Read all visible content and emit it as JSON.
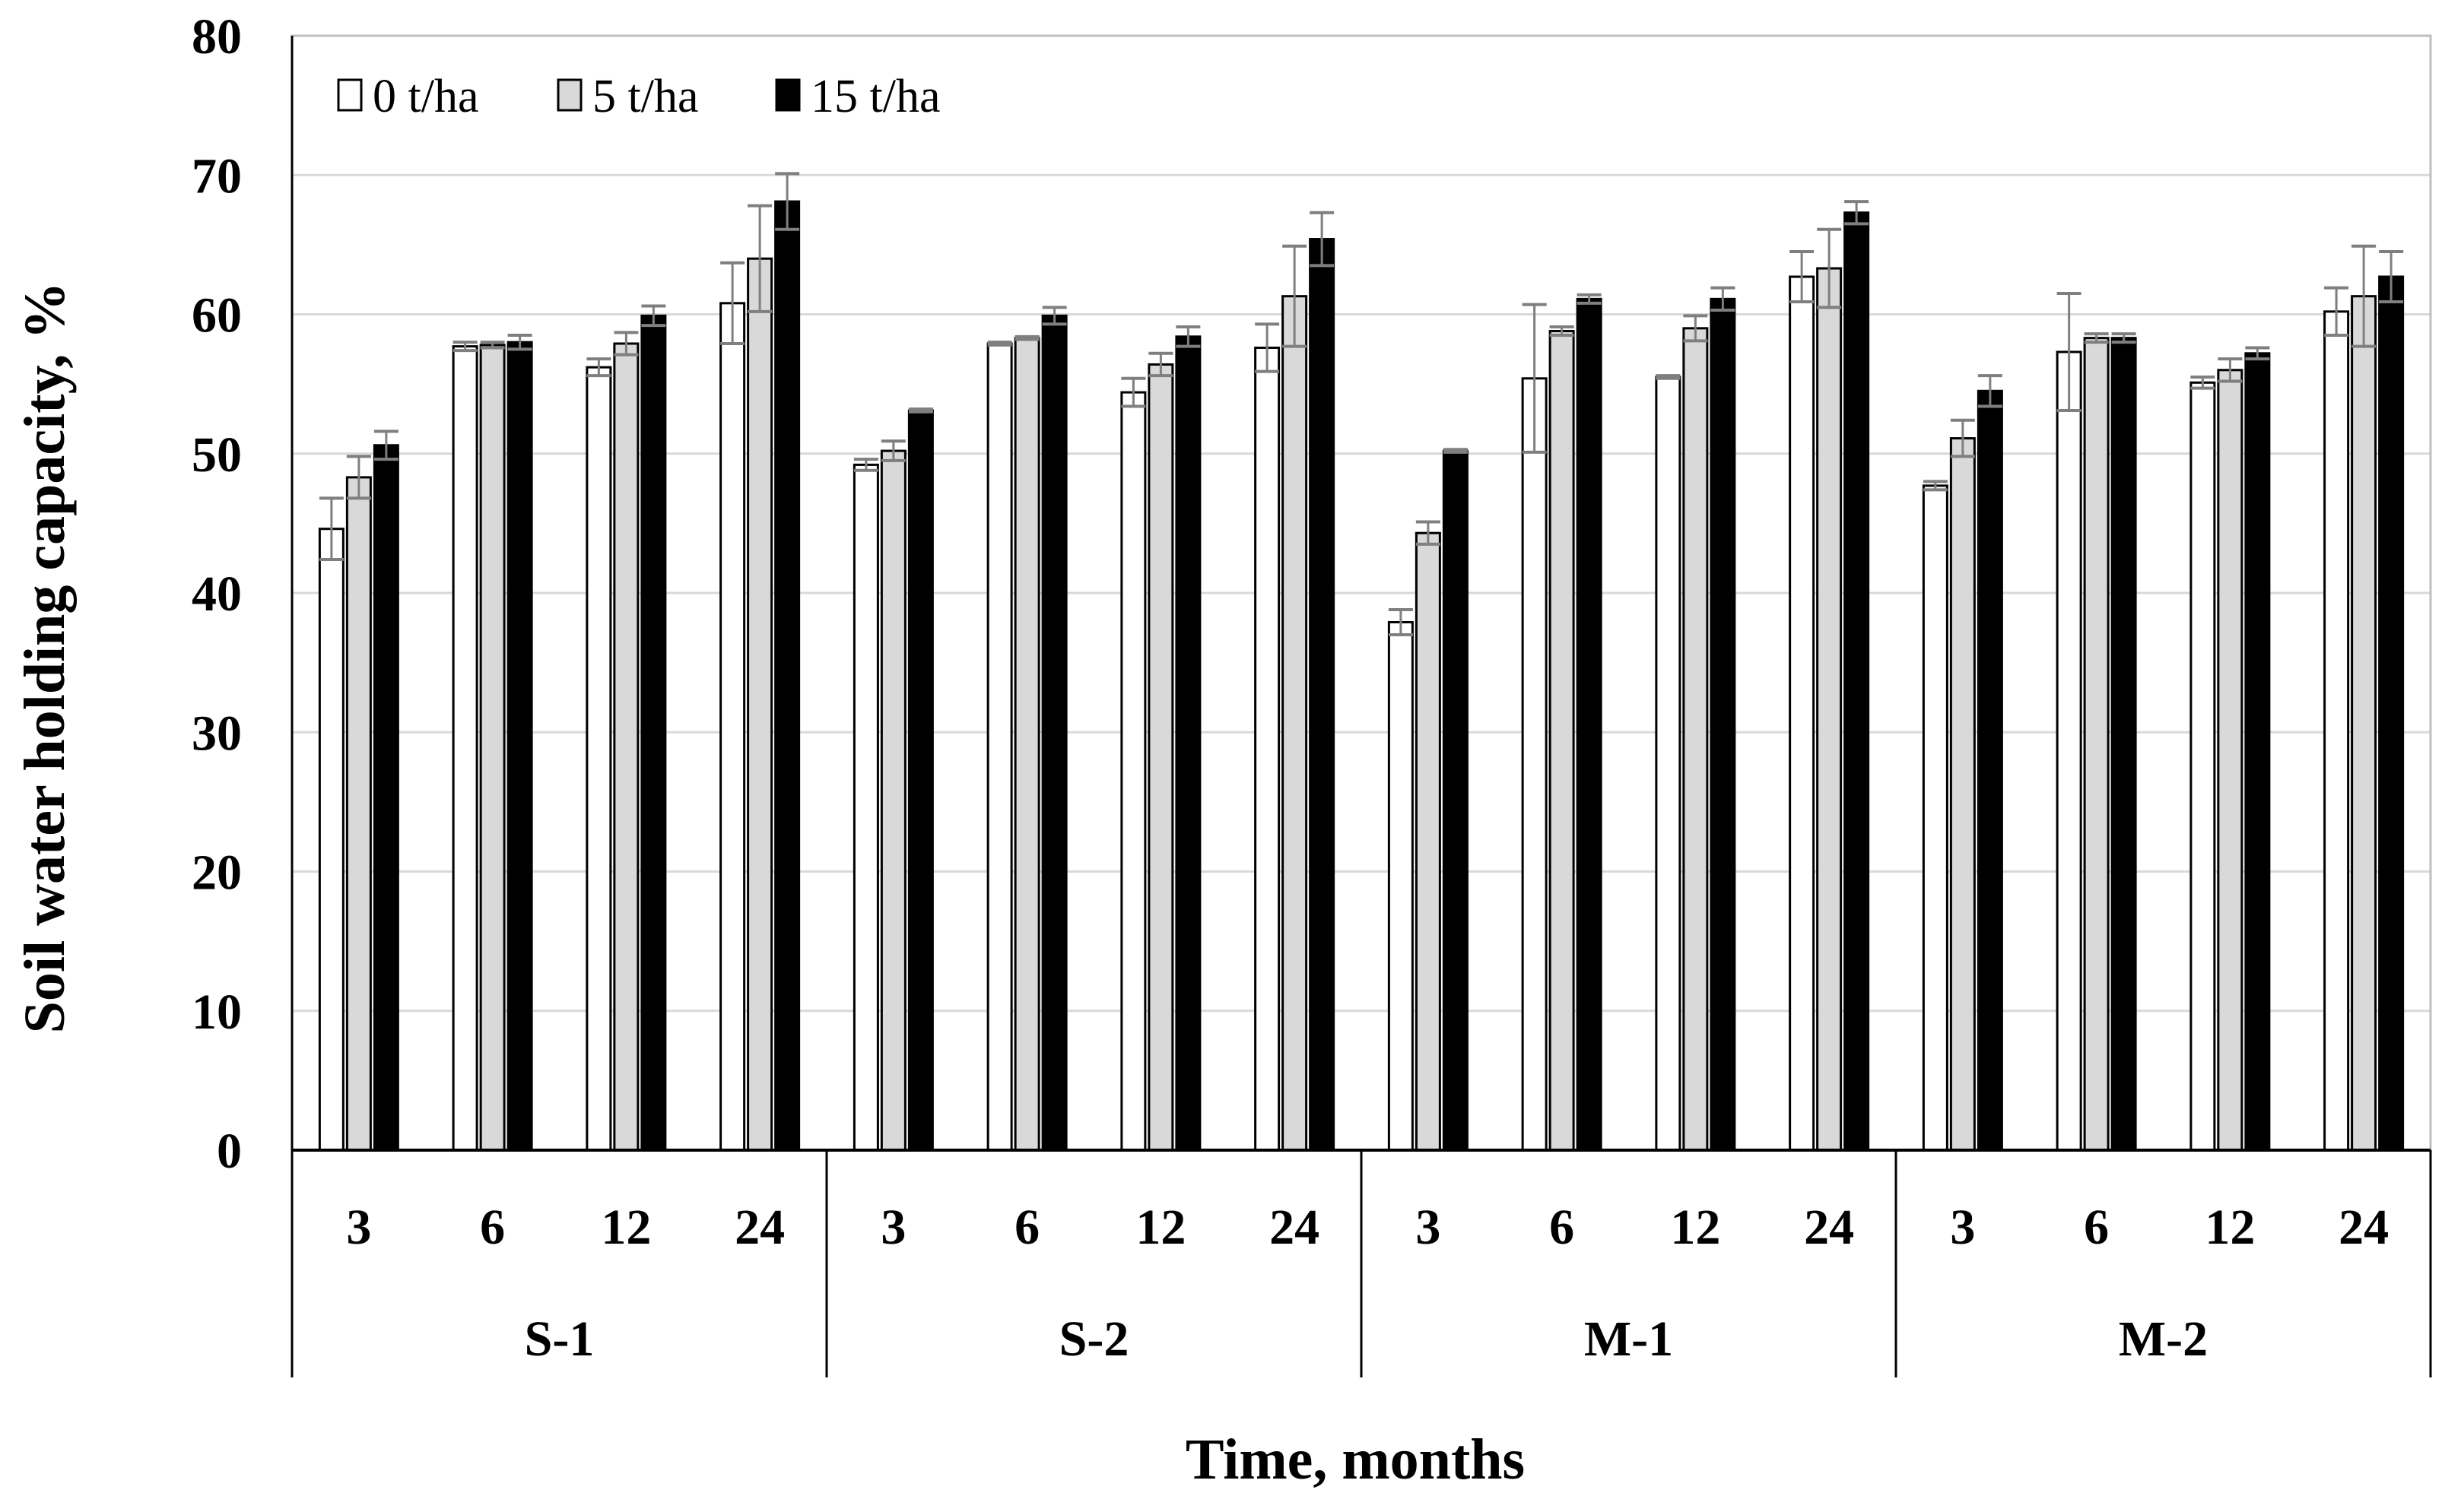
{
  "chart_data": {
    "type": "bar",
    "title": "",
    "xlabel": "Time, months",
    "ylabel": "Soil water holding capacity, %",
    "ylim": [
      0,
      80
    ],
    "yticks": [
      0,
      10,
      20,
      30,
      40,
      50,
      60,
      70,
      80
    ],
    "grid": true,
    "legend_position": "top-left",
    "groups": [
      "S-1",
      "S-2",
      "M-1",
      "M-2"
    ],
    "times": [
      "3",
      "6",
      "12",
      "24"
    ],
    "categories": [
      "S-1 3",
      "S-1 6",
      "S-1 12",
      "S-1 24",
      "S-2 3",
      "S-2 6",
      "S-2 12",
      "S-2 24",
      "M-1 3",
      "M-1 6",
      "M-1 12",
      "M-1 24",
      "M-2 3",
      "M-2 6",
      "M-2 12",
      "M-2 24"
    ],
    "series": [
      {
        "name": "0 t/ha",
        "color": "#ffffff",
        "values": [
          44.6,
          57.7,
          56.2,
          60.8,
          49.2,
          57.9,
          54.4,
          57.6,
          37.9,
          55.4,
          55.5,
          62.7,
          47.7,
          57.3,
          55.1,
          60.2
        ],
        "errors": [
          2.2,
          0.3,
          0.6,
          2.9,
          0.4,
          0.1,
          1.0,
          1.7,
          0.9,
          5.3,
          0.1,
          1.8,
          0.3,
          4.2,
          0.4,
          1.7
        ]
      },
      {
        "name": "5 t/ha",
        "color": "#d9d9d9",
        "values": [
          48.3,
          57.8,
          57.9,
          64.0,
          50.2,
          58.3,
          56.4,
          61.3,
          44.3,
          58.8,
          59.0,
          63.3,
          51.1,
          58.3,
          56.0,
          61.3
        ],
        "errors": [
          1.5,
          0.2,
          0.8,
          3.8,
          0.7,
          0.1,
          0.8,
          3.6,
          0.8,
          0.3,
          0.9,
          2.8,
          1.3,
          0.3,
          0.8,
          3.6
        ]
      },
      {
        "name": "15 t/ha",
        "color": "#000000",
        "values": [
          50.6,
          58.0,
          59.9,
          68.1,
          53.1,
          59.9,
          58.4,
          65.4,
          50.2,
          61.1,
          61.1,
          67.3,
          54.5,
          58.3,
          57.2,
          62.7
        ],
        "errors": [
          1.0,
          0.5,
          0.7,
          2.0,
          0.1,
          0.6,
          0.7,
          1.9,
          0.1,
          0.3,
          0.8,
          0.8,
          1.1,
          0.3,
          0.4,
          1.8
        ]
      }
    ]
  }
}
